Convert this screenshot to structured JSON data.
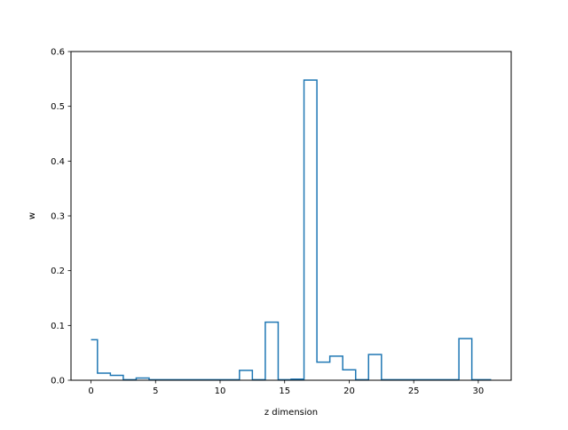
{
  "chart_data": {
    "type": "line",
    "drawstyle": "steps-mid",
    "xlabel": "z dimension",
    "ylabel": "w",
    "xlim": [
      -1.55,
      32.55
    ],
    "ylim": [
      0,
      0.6
    ],
    "xticks": [
      0,
      5,
      10,
      15,
      20,
      25,
      30
    ],
    "yticks": [
      0.0,
      0.1,
      0.2,
      0.3,
      0.4,
      0.5,
      0.6
    ],
    "xtick_labels": [
      "0",
      "5",
      "10",
      "15",
      "20",
      "25",
      "30"
    ],
    "ytick_labels": [
      "0.0",
      "0.1",
      "0.2",
      "0.3",
      "0.4",
      "0.5",
      "0.6"
    ],
    "grid": false,
    "series": [
      {
        "color": "#1f77b4",
        "x": [
          0,
          1,
          2,
          3,
          4,
          5,
          6,
          7,
          8,
          9,
          10,
          11,
          12,
          13,
          14,
          15,
          16,
          17,
          18,
          19,
          20,
          21,
          22,
          23,
          24,
          25,
          26,
          27,
          28,
          29,
          30,
          31
        ],
        "values": [
          0.074,
          0.013,
          0.009,
          0.001,
          0.004,
          0.001,
          0.001,
          0.001,
          0.001,
          0.001,
          0.001,
          0.001,
          0.018,
          0.001,
          0.106,
          0.001,
          0.002,
          0.548,
          0.033,
          0.044,
          0.019,
          0.001,
          0.047,
          0.001,
          0.001,
          0.001,
          0.001,
          0.001,
          0.001,
          0.076,
          0.001,
          0.001
        ]
      }
    ]
  }
}
